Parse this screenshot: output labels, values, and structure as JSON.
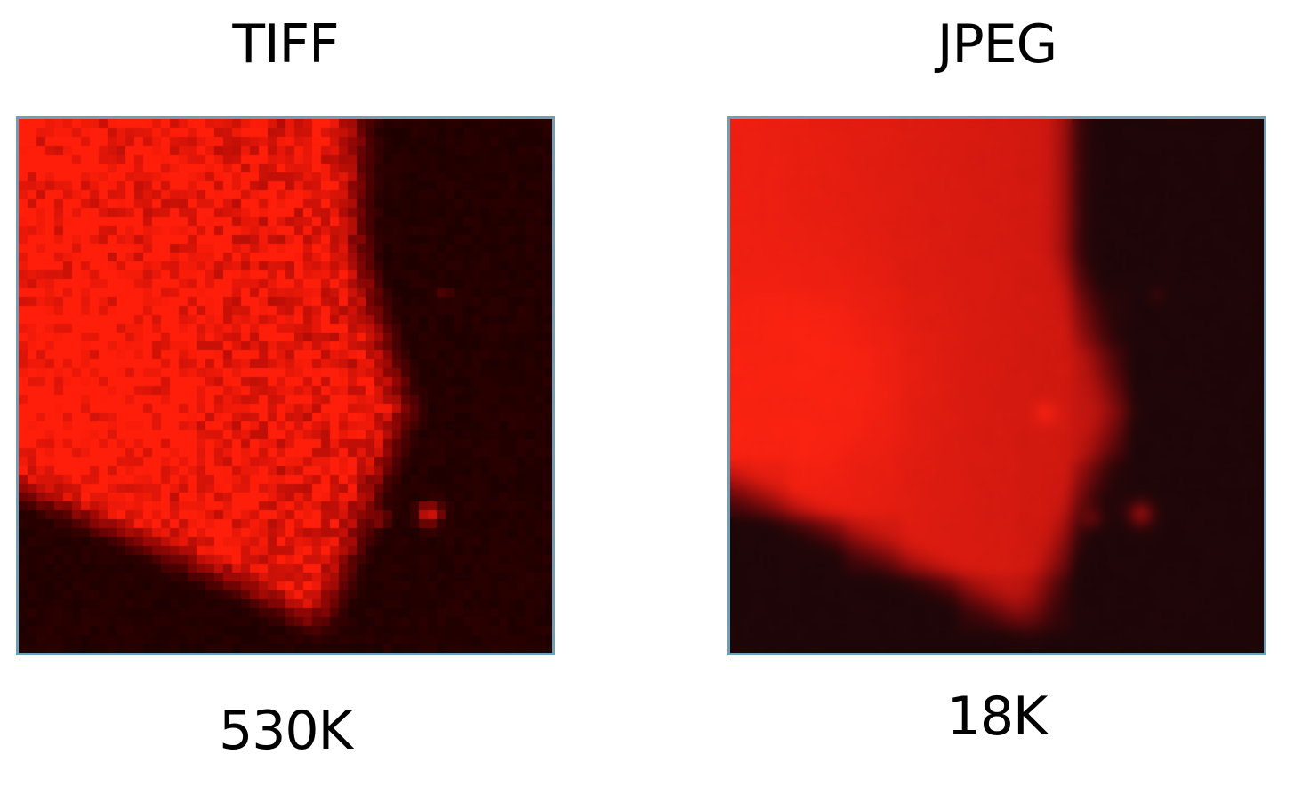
{
  "panels": [
    {
      "format": "TIFF",
      "file_size": "530K",
      "rendering": "sharp pixelated noisy red fluorescence micrograph"
    },
    {
      "format": "JPEG",
      "file_size": "18K",
      "rendering": "smoothed blurry red fluorescence micrograph with compression blocks"
    }
  ],
  "colors": {
    "frame_border": "#6f9fb6",
    "bright_red": "#ff2a10",
    "dark_background": "#1e0000"
  }
}
